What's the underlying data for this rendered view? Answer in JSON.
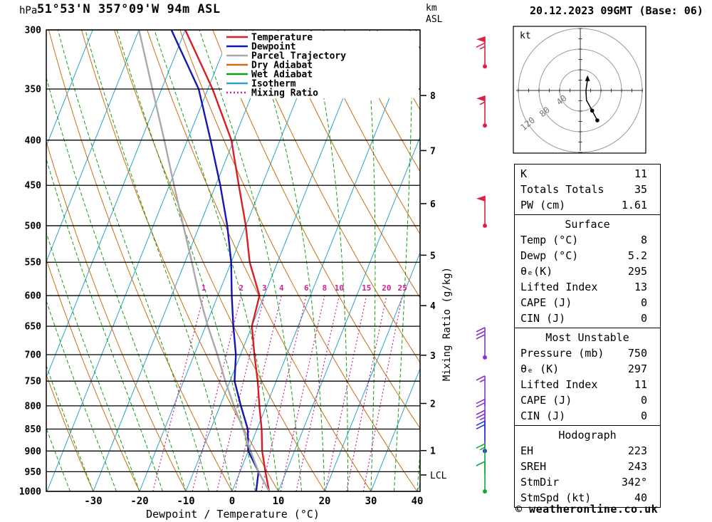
{
  "header": {
    "pressure_unit": "hPa",
    "title": "51°53'N 357°09'W 94m ASL",
    "altitude_unit_line1": "km",
    "altitude_unit_line2": "ASL",
    "datetime": "20.12.2023 09GMT (Base: 06)"
  },
  "chart_data": {
    "type": "skewt-logp",
    "xlabel": "Dewpoint / Temperature (°C)",
    "ylabel_right": "Mixing Ratio (g/kg)",
    "pressure_range_hpa": [
      300,
      1000
    ],
    "temp_range_c": [
      -40,
      40
    ],
    "pressure_ticks": [
      300,
      350,
      400,
      450,
      500,
      550,
      600,
      650,
      700,
      750,
      800,
      850,
      900,
      950,
      1000
    ],
    "temp_ticks": [
      -30,
      -20,
      -10,
      0,
      10,
      20,
      30,
      40
    ],
    "km_ticks": [
      {
        "km": 8,
        "p": 356
      },
      {
        "km": 7,
        "p": 411
      },
      {
        "km": 6,
        "p": 472
      },
      {
        "km": 5,
        "p": 540
      },
      {
        "km": 4,
        "p": 616
      },
      {
        "km": 3,
        "p": 701
      },
      {
        "km": 2,
        "p": 795
      },
      {
        "km": 1,
        "p": 899
      }
    ],
    "lcl": {
      "label": "LCL",
      "p": 958
    },
    "mixing_ratio_values": [
      1,
      2,
      3,
      4,
      6,
      8,
      10,
      15,
      20,
      25
    ],
    "isotherm_step": 10,
    "dry_adiabat_step": 10,
    "wet_adiabat_step": 5,
    "colors": {
      "temperature": "#dc1c24",
      "dewpoint": "#1616b6",
      "parcel": "#a9a9a9",
      "dry_adiabat": "#cc6e12",
      "wet_adiabat": "#12a012",
      "isotherm": "#2ba3cf",
      "mixing_ratio": "#cf1f96",
      "grid": "#000000"
    },
    "legend": [
      {
        "label": "Temperature",
        "color": "#dc1c24",
        "style": "solid"
      },
      {
        "label": "Dewpoint",
        "color": "#1616b6",
        "style": "solid"
      },
      {
        "label": "Parcel Trajectory",
        "color": "#a9a9a9",
        "style": "solid"
      },
      {
        "label": "Dry Adiabat",
        "color": "#cc6e12",
        "style": "solid"
      },
      {
        "label": "Wet Adiabat",
        "color": "#12a012",
        "style": "solid"
      },
      {
        "label": "Isotherm",
        "color": "#2ba3cf",
        "style": "solid"
      },
      {
        "label": "Mixing Ratio",
        "color": "#cf1f96",
        "style": "dotted"
      }
    ],
    "series": [
      {
        "name": "Temperature",
        "color": "#dc1c24",
        "points": [
          [
            1000,
            8
          ],
          [
            950,
            5.5
          ],
          [
            900,
            3
          ],
          [
            850,
            1
          ],
          [
            800,
            -1.5
          ],
          [
            750,
            -4
          ],
          [
            700,
            -7
          ],
          [
            650,
            -10
          ],
          [
            600,
            -11
          ],
          [
            550,
            -16
          ],
          [
            500,
            -20
          ],
          [
            450,
            -25
          ],
          [
            400,
            -30.5
          ],
          [
            350,
            -39
          ],
          [
            300,
            -50
          ]
        ]
      },
      {
        "name": "Dewpoint",
        "color": "#1616b6",
        "points": [
          [
            1000,
            5.2
          ],
          [
            950,
            4
          ],
          [
            900,
            0
          ],
          [
            850,
            -2
          ],
          [
            800,
            -5.5
          ],
          [
            750,
            -9
          ],
          [
            700,
            -11
          ],
          [
            650,
            -14
          ],
          [
            600,
            -17
          ],
          [
            550,
            -20
          ],
          [
            500,
            -24
          ],
          [
            450,
            -29
          ],
          [
            400,
            -35
          ],
          [
            350,
            -42
          ],
          [
            300,
            -53
          ]
        ]
      },
      {
        "name": "Parcel Trajectory",
        "color": "#a9a9a9",
        "points": [
          [
            1000,
            8
          ],
          [
            950,
            4
          ],
          [
            900,
            0.5
          ],
          [
            850,
            -3
          ],
          [
            800,
            -7
          ],
          [
            750,
            -11
          ],
          [
            700,
            -15
          ],
          [
            650,
            -19.5
          ],
          [
            600,
            -24
          ],
          [
            550,
            -28.5
          ],
          [
            500,
            -33.5
          ],
          [
            450,
            -39
          ],
          [
            400,
            -45
          ],
          [
            350,
            -52
          ],
          [
            300,
            -60
          ]
        ]
      }
    ]
  },
  "wind_barbs": [
    {
      "pressure_hpa": 330,
      "speed_kt": 65,
      "color": "#e02044",
      "dot": true
    },
    {
      "pressure_hpa": 385,
      "speed_kt": 55,
      "color": "#e02044",
      "dot": true
    },
    {
      "pressure_hpa": 500,
      "speed_kt": 50,
      "color": "#e02044",
      "dot": true
    },
    {
      "pressure_hpa": 705,
      "speed_kt": 30,
      "color": "#8833cc",
      "dot": true
    },
    {
      "pressure_hpa": 800,
      "speed_kt": 15,
      "color": "#8833cc",
      "dot": false
    },
    {
      "pressure_hpa": 850,
      "speed_kt": 20,
      "color": "#8833cc",
      "dot": false
    },
    {
      "pressure_hpa": 875,
      "speed_kt": 25,
      "color": "#8833cc",
      "dot": false
    },
    {
      "pressure_hpa": 900,
      "speed_kt": 20,
      "color": "#2233dd",
      "dot": true
    },
    {
      "pressure_hpa": 955,
      "speed_kt": 15,
      "color": "#11aa33",
      "dot": false
    },
    {
      "pressure_hpa": 1000,
      "speed_kt": 10,
      "color": "#11aa33",
      "dot": true
    }
  ],
  "hodograph": {
    "unit_label": "kt",
    "rings_kt": [
      40,
      80,
      120
    ],
    "ring_axis_labels": [
      "120",
      "80",
      "40"
    ],
    "trace_kt": [
      [
        14,
        21
      ],
      [
        11,
        0
      ],
      [
        12,
        -19
      ],
      [
        23,
        -39
      ],
      [
        33,
        -58
      ]
    ],
    "dots_kt": [
      [
        23,
        -39
      ],
      [
        33,
        -58
      ]
    ],
    "arrow_kt": [
      14,
      21
    ]
  },
  "tables": {
    "indices": {
      "rows": [
        [
          "K",
          "11"
        ],
        [
          "Totals Totals",
          "35"
        ],
        [
          "PW (cm)",
          "1.61"
        ]
      ]
    },
    "surface": {
      "title": "Surface",
      "rows": [
        [
          "Temp (°C)",
          "8"
        ],
        [
          "Dewp (°C)",
          "5.2"
        ],
        [
          "θₑ(K)",
          "295"
        ],
        [
          "Lifted Index",
          "13"
        ],
        [
          "CAPE (J)",
          "0"
        ],
        [
          "CIN (J)",
          "0"
        ]
      ]
    },
    "most_unstable": {
      "title": "Most Unstable",
      "rows": [
        [
          "Pressure (mb)",
          "750"
        ],
        [
          "θₑ (K)",
          "297"
        ],
        [
          "Lifted Index",
          "11"
        ],
        [
          "CAPE (J)",
          "0"
        ],
        [
          "CIN (J)",
          "0"
        ]
      ]
    },
    "hodograph_table": {
      "title": "Hodograph",
      "rows": [
        [
          "EH",
          "223"
        ],
        [
          "SREH",
          "243"
        ],
        [
          "StmDir",
          "342°"
        ],
        [
          "StmSpd (kt)",
          "40"
        ]
      ]
    }
  },
  "footer": {
    "credit": "© weatheronline.co.uk"
  }
}
